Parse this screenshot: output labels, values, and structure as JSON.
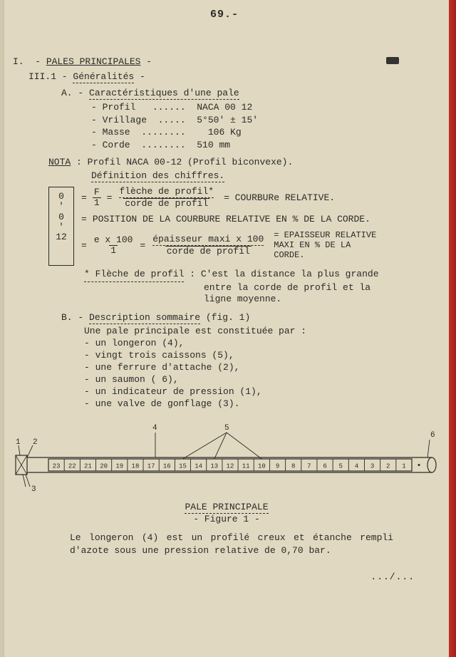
{
  "page_number": "69.-",
  "dark_mark_text": ".-",
  "heading1_prefix": "I.",
  "heading1": "PALES PRINCIPALES",
  "heading2": "III.1 - Généralités -",
  "heading2_core": "Généralités",
  "heading3_prefix": "A. -",
  "heading3": "Caractéristiques d'une pale",
  "specs": {
    "profil_label": "- Profil",
    "profil_dots": "......",
    "profil_value": "NACA 00 12",
    "vrillage_label": "- Vrillage",
    "vrillage_dots": ".....",
    "vrillage_value": "5°50' ± 15'",
    "masse_label": "- Masse",
    "masse_dots": "........",
    "masse_value": "106 Kg",
    "corde_label": "- Corde",
    "corde_dots": "........",
    "corde_value": "510 mm"
  },
  "nota_label": "NOTA",
  "nota_text": ": Profil NACA 00-12 (Profil biconvexe).",
  "def_chiffres": "Définition des chiffres.",
  "box": {
    "a": "0",
    "b": "'",
    "c": "0",
    "d": "'",
    "e": "12"
  },
  "formula1": {
    "eq": "=",
    "frac1_num": "F",
    "frac1_den": "1",
    "frac2_num": "flèche de profil*",
    "frac2_den": "corde de profil",
    "rhs": "= COURBURe RELATIVE."
  },
  "formula2": {
    "eq": "=",
    "text": "POSITION DE LA COURBURE RELATIVE EN % DE LA CORDE."
  },
  "formula3": {
    "eq": "=",
    "frac1_num": "e x 100",
    "frac1_den": "1",
    "frac2_num": "épaisseur maxi x 100",
    "frac2_den": "corde de profil",
    "rhs1": "= EPAISSEUR RELATIVE",
    "rhs2": "  MAXI EN % DE LA",
    "rhs3": "  CORDE."
  },
  "star_label": "* Flèche de profil",
  "star_text1": ": C'est la distance la plus grande",
  "star_text2": "entre la corde de profil et la",
  "star_text3": "ligne moyenne.",
  "headingB_prefix": "B. -",
  "headingB": "Description sommaire",
  "headingB_suffix": "(fig. 1)",
  "desc_intro": "Une pale principale est constituée  par :",
  "desc_items": {
    "a": "- un longeron (4),",
    "b": "- vingt trois caissons (5),",
    "c": "- une ferrure d'attache (2),",
    "d": "- un saumon ( 6),",
    "e": "- un indicateur de pression (1),",
    "f": "- une valve de gonflage (3)."
  },
  "figure": {
    "type": "diagram",
    "callouts": {
      "c1": "1",
      "c2": "2",
      "c3": "3",
      "c4": "4",
      "c5": "5",
      "c6": "6"
    },
    "compartments": [
      "23",
      "22",
      "21",
      "20",
      "19",
      "18",
      "17",
      "16",
      "15",
      "14",
      "13",
      "12",
      "11",
      "10",
      "9",
      "8",
      "7",
      "6",
      "5",
      "4",
      "3",
      "2",
      "1"
    ],
    "stroke": "#2a2a28",
    "stroke_width": 1.2,
    "title": "PALE PRINCIPALE",
    "subtitle": "- Figure 1 -"
  },
  "closing_para": "Le longeron (4) est un profilé creux et étanche rempli d'azote sous une pression relative de 0,70 bar.",
  "continuation": ".../..."
}
